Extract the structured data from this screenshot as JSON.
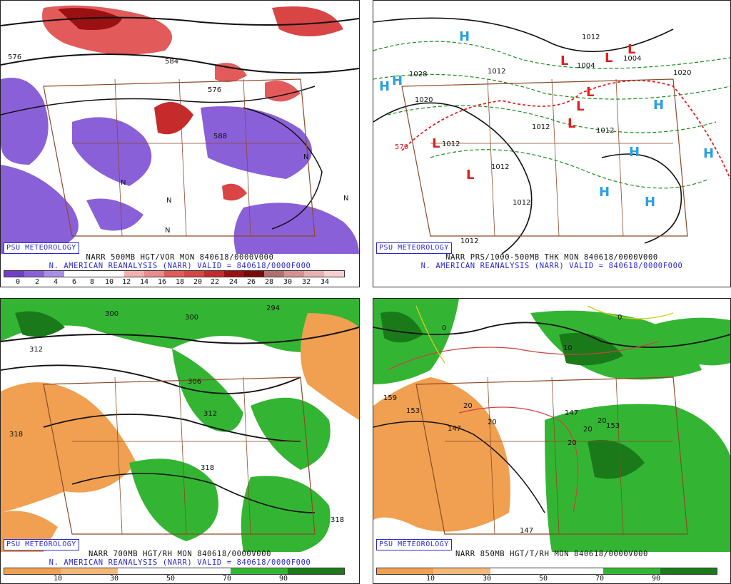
{
  "panels": [
    {
      "badge": "PSU METEOROLOGY",
      "caption1": "NARR 500MB HGT/VOR MON 840618/0000V000",
      "caption2": "N. AMERICAN REANALYSIS (NARR) VALID = 840618/0000F000",
      "colorbar": [
        "0",
        "2",
        "4",
        "6",
        "8",
        "10",
        "12",
        "14",
        "16",
        "18",
        "20",
        "22",
        "24",
        "26",
        "28",
        "30",
        "32",
        "34"
      ],
      "contour_labels": [
        "576",
        "584",
        "576",
        "588",
        "N",
        "N",
        "N",
        "N",
        "N"
      ]
    },
    {
      "badge": "PSU METEOROLOGY",
      "caption1": "NARR PRS/1000-500MB THK MON 840618/0000V000",
      "caption2": "N. AMERICAN REANALYSIS (NARR) VALID = 840618/0000F000",
      "contour_labels": [
        "1012",
        "1004",
        "1004",
        "1020",
        "1028",
        "1020",
        "1012",
        "1012",
        "1012",
        "1012",
        "1012",
        "1012",
        "1012",
        "570"
      ],
      "centers": [
        "H",
        "H",
        "H",
        "L",
        "L",
        "L",
        "L",
        "L",
        "L",
        "L",
        "L",
        "H",
        "H",
        "H",
        "H",
        "H"
      ]
    },
    {
      "badge": "PSU METEOROLOGY",
      "caption1": "NARR 700MB HGT/RH MON 840618/0000V000",
      "caption2": "N. AMERICAN REANALYSIS (NARR) VALID = 840618/0000F000",
      "colorbar": [
        "10",
        "30",
        "50",
        "70",
        "90"
      ],
      "contour_labels": [
        "300",
        "300",
        "294",
        "312",
        "306",
        "312",
        "318",
        "318",
        "318"
      ]
    },
    {
      "badge": "PSU METEOROLOGY",
      "caption1": "NARR 850MB HGT/T/RH MON 840618/0000V000",
      "caption2": "",
      "colorbar": [
        "10",
        "30",
        "50",
        "70",
        "90"
      ],
      "contour_labels": [
        "0",
        "0",
        "10",
        "159",
        "153",
        "147",
        "147",
        "153",
        "147",
        "20",
        "20",
        "20",
        "20",
        "20"
      ]
    }
  ],
  "colors": {
    "vor_pos": "#d94545",
    "vor_neg": "#8a60d8",
    "rh_dry": "#f0a050",
    "rh_moist": "#33b533",
    "rh_very_moist": "#1a7a1a",
    "border": "#8a4a2a",
    "badge_blue": "#2a2ad0",
    "high_color": "#2aa0e0",
    "low_color": "#e02020"
  }
}
